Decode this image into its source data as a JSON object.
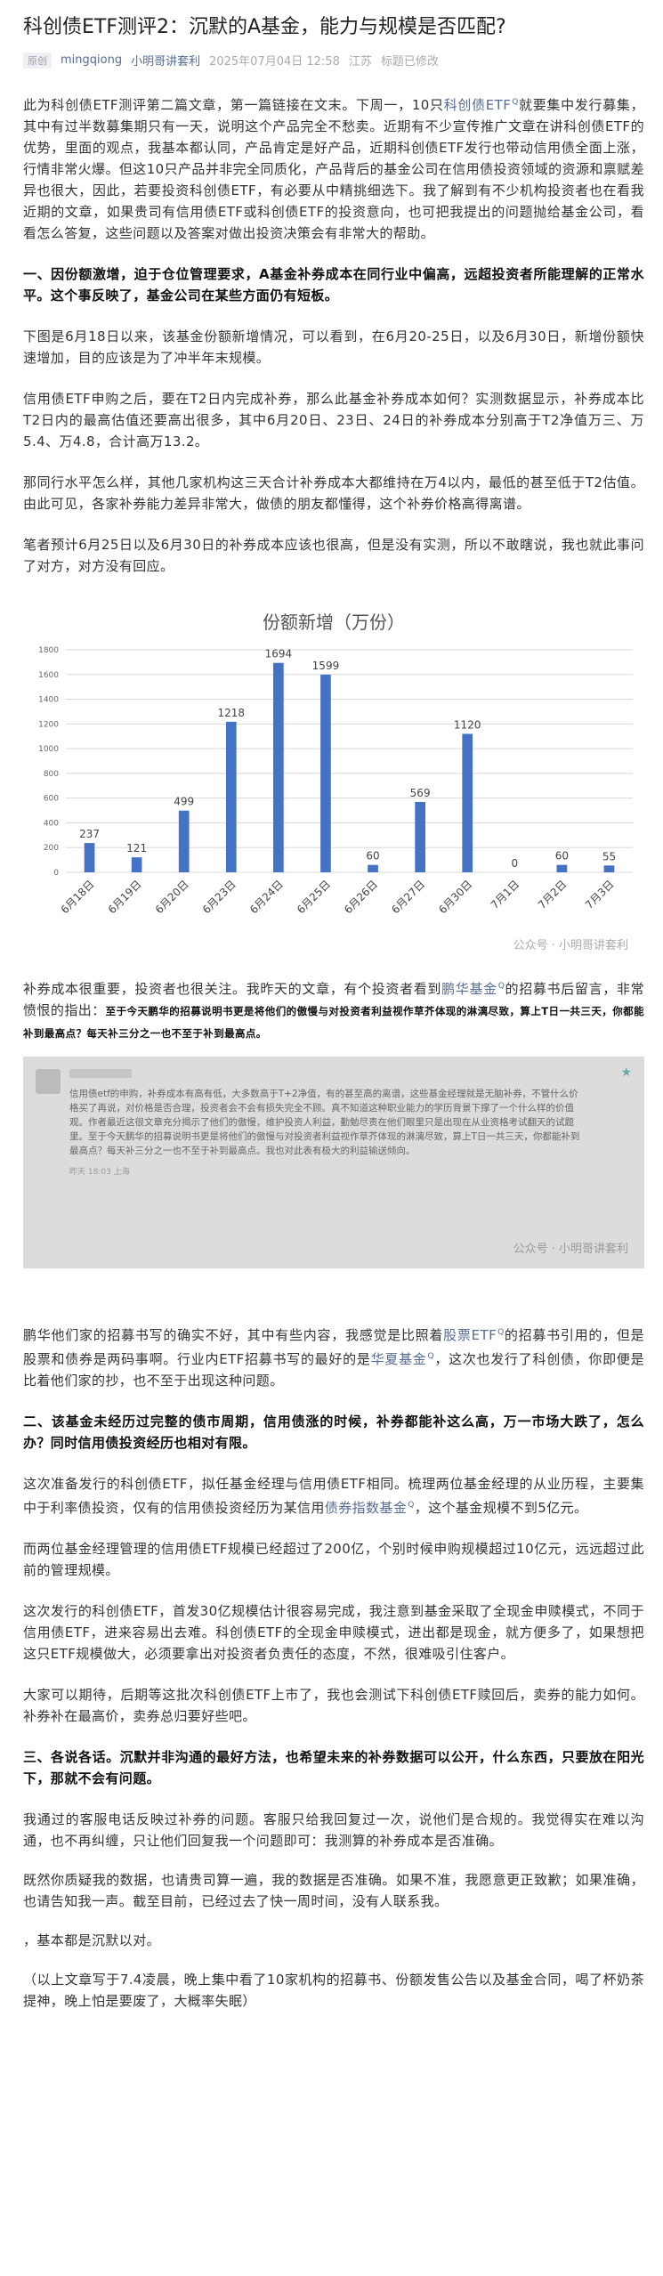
{
  "article": {
    "title": "科创债ETF测评2：沉默的A基金，能力与规模是否匹配?",
    "meta": {
      "original_badge": "原创",
      "author": "mingqiong",
      "account": "小明哥讲套利",
      "datetime": "2025年07月04日 12:58",
      "location": "江苏",
      "edited_note": "标题已修改"
    },
    "intro": {
      "t1": "此为科创债ETF测评第二篇文章，第一篇链接在文末。下周一，10只",
      "link1": "科创债ETF",
      "t2": "就要集中发行募集，其中有过半数募集期只有一天，说明这个产品完全不愁卖。近期有不少宣传推广文章在讲科创债ETF的优势，里面的观点，我基本都认同，产品肯定是好产品，近期科创债ETF发行也带动信用债全面上涨，行情非常火爆。但这10只产品并非完全同质化，产品背后的基金公司在信用债投资领域的资源和禀赋差异也很大，因此，若要投资科创债ETF，有必要从中精挑细选下。我了解到有不少机构投资者也在看我近期的文章，如果贵司有信用债ETF或科创债ETF的投资意向，也可把我提出的问题抛给基金公司，看看怎么答复，这些问题以及答案对做出投资决策会有非常大的帮助。"
    },
    "section1_heading": "一、因份额激增，迫于仓位管理要求，A基金补券成本在同行业中偏高，远超投资者所能理解的正常水平。这个事反映了，基金公司在某些方面仍有短板。",
    "p_june18": "下图是6月18日以来，该基金份额新增情况，可以看到，在6月20-25日，以及6月30日，新增份额快速增加，目的应该是为了冲半年末规模。",
    "p_cost": "信用债ETF申购之后，要在T2日内完成补券，那么此基金补券成本如何？实测数据显示，补券成本比T2日内的最高估值还要高出很多，其中6月20日、23日、24日的补券成本分别高于T2净值万三、万5.4、万4.8，合计高万13.2。",
    "p_peers": "那同行水平怎么样，其他几家机构这三天合计补券成本大都维持在万4以内，最低的甚至低于T2估值。由此可见，各家补券能力差异非常大，做债的朋友都懂得，这个补券价格高得离谱。",
    "p_predict": "笔者预计6月25日以及6月30日的补券成本应该也很高，但是没有实测，所以不敢瞎说，我也就此事问了对方，对方没有回应。",
    "p_after_chart": {
      "t1": "补券成本很重要，投资者也很关注。我昨天的文章，有个投资者看到",
      "link": "鹏华基金",
      "t2": "的招募书后留言，非常愤恨的指出：",
      "quote": "至于今天鹏华的招募说明书更是将他们的傲慢与对投资者利益视作草芥体现的淋漓尽致，算上T日一共三天，你都能补到最高点？每天补三分之一也不至于补到最高点。"
    },
    "screenshot": {
      "comment": "信用债etf的申购，补券成本有高有低，大多数高于T+2净值，有的甚至高的离谱，这些基金经理就是无脑补券，不管什么价格买了再说，对价格是否合理，投资者会不会有损失完全不顾。真不知道这种职业能力的学历背景下撑了一个什么样的价值观。作者最近这很文章充分揭示了他们的傲慢，维护投资人利益，勤勉尽责在他们眼里只是出现在从业资格考试翻天的试题里。至于今天鹏华的招募说明书更是将他们的傲慢与对投资者利益视作草芥体现的淋漓尽致，算上T日一共三天，你都能补到最高点？每天补三分之一也不至于补到最高点。我也对此表有极大的利益输送倾向。",
      "date": "昨天 18:03",
      "location": "上海",
      "watermark": "公众号 · 小明哥讲套利"
    },
    "p_penghua": {
      "t1": "鹏华他们家的招募书写的确实不好，其中有些内容，我感觉是比照着",
      "link1": "股票ETF",
      "t2": "的招募书引用的，但是股票和债券是两码事啊。行业内ETF招募书写的最好的是",
      "link2": "华夏基金",
      "t3": "，这次也发行了科创债，你即便是比着他们家的抄，也不至于出现这种问题。"
    },
    "section2_heading": "二、该基金未经历过完整的债市周期，信用债涨的时候，补券都能补这么高，万一市场大跌了，怎么办？同时信用债投资经历也相对有限。",
    "p_managers": {
      "t1": "这次准备发行的科创债ETF，拟任基金经理与信用债ETF相同。梳理两位基金经理的从业历程，主要集中于利率债投资，仅有的信用债投资经历为某信用",
      "link": "债券指数基金",
      "t2": "，这个基金规模不到5亿元。"
    },
    "p_scale": "而两位基金经理管理的信用债ETF规模已经超过了200亿，个别时候申购规模超过10亿元，远远超过此前的管理规模。",
    "p_mode": "这次发行的科创债ETF，首发30亿规模估计很容易完成，我注意到基金采取了全现金申赎模式，不同于信用债ETF，进来容易出去难。科创债ETF的全现金申赎模式，进出都是现金，就方便多了，如果想把这只ETF规模做大，必须要拿出对投资者负责任的态度，不然，很难吸引住客户。",
    "p_wait": "大家可以期待，后期等这批次科创债ETF上市了，我也会测试下科创债ETF赎回后，卖券的能力如何。补券补在最高价，卖券总归要好些吧。",
    "section3_heading": "三、各说各话。沉默并非沟通的最好方法，也希望未来的补券数据可以公开，什么东西，只要放在阳光下，那就不会有问题。",
    "p_contact": "我通过的客服电话反映过补券的问题。客服只给我回复过一次，说他们是合规的。我觉得实在难以沟通，也不再纠缠，只让他们回复我一个问题即可：我测算的补券成本是否准确。",
    "p_verify": "既然你质疑我的数据，也请贵司算一遍，我的数据是否准确。如果不准，我愿意更正致歉；如果准确，也请告知我一声。截至目前，已经过去了快一周时间，没有人联系我。",
    "p_silent": "，基本都是沉默以对。",
    "p_footer": "（以上文章写于7.4凌晨，晚上集中看了10家机构的招募书、份额发售公告以及基金合同，喝了杯奶茶提神，晚上怕是要废了，大概率失眠）"
  },
  "chart_data": {
    "type": "bar",
    "title": "份额新增（万份）",
    "categories": [
      "6月18日",
      "6月19日",
      "6月20日",
      "6月23日",
      "6月24日",
      "6月25日",
      "6月26日",
      "6月27日",
      "6月30日",
      "7月1日",
      "7月2日",
      "7月3日"
    ],
    "values": [
      237,
      121,
      499,
      1218,
      1694,
      1599,
      60,
      569,
      1120,
      0,
      60,
      55
    ],
    "ylim": [
      0,
      1800
    ],
    "yticks": [
      "0",
      "200",
      "400",
      "600",
      "800",
      "1000",
      "1200",
      "1400",
      "1600",
      "1800"
    ],
    "grid": true,
    "bar_color": "#4472c4",
    "watermark": "公众号 · 小明哥讲套利"
  }
}
